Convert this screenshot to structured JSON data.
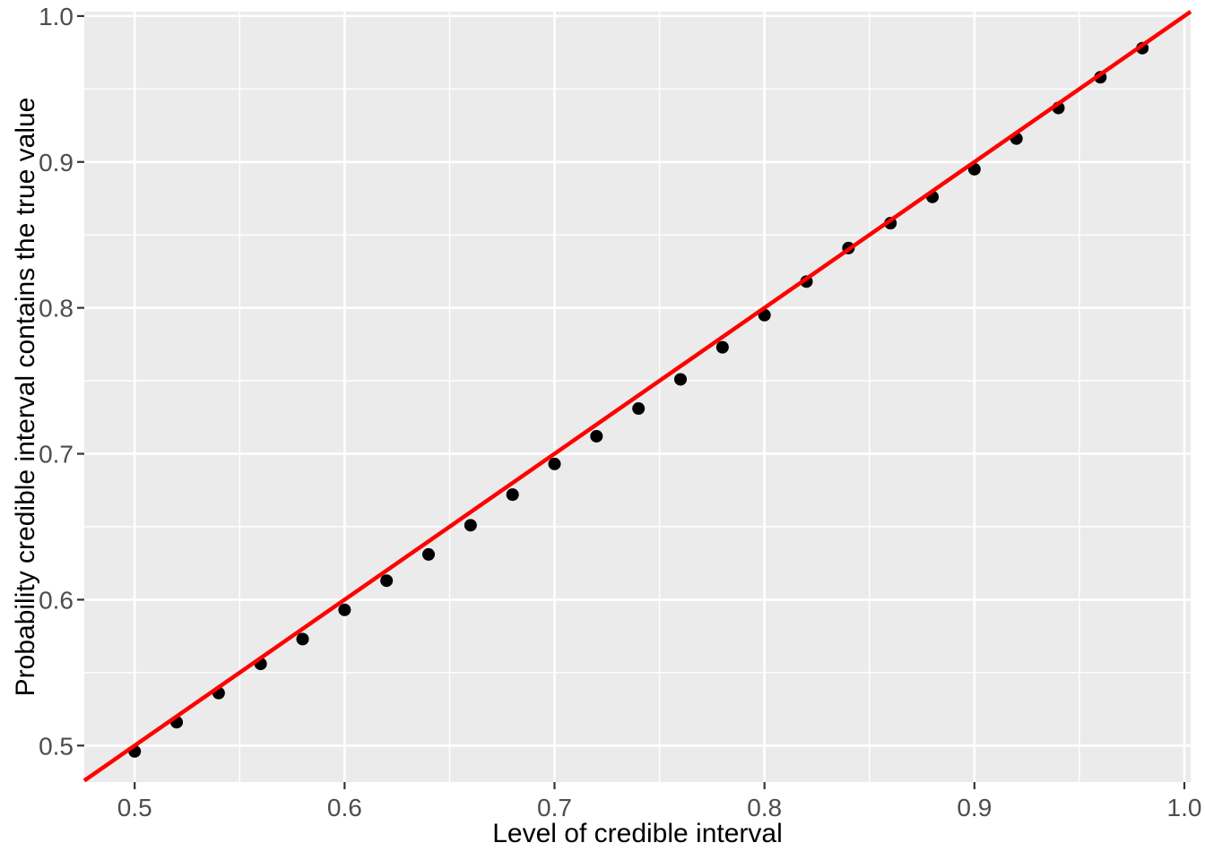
{
  "chart_data": {
    "type": "scatter",
    "title": "",
    "xlabel": "Level of credible interval",
    "ylabel": "Probability credible interval contains the true value",
    "xlim": [
      0.476,
      1.003
    ],
    "ylim": [
      0.475,
      1.003
    ],
    "x_major_ticks": [
      0.5,
      0.6,
      0.7,
      0.8,
      0.9,
      1.0
    ],
    "y_major_ticks": [
      0.5,
      0.6,
      0.7,
      0.8,
      0.9,
      1.0
    ],
    "x_tick_labels": [
      "0.5",
      "0.6",
      "0.7",
      "0.8",
      "0.9",
      "1.0"
    ],
    "y_tick_labels": [
      "0.5",
      "0.6",
      "0.7",
      "0.8",
      "0.9",
      "1.0"
    ],
    "x_minor_ticks": [
      0.55,
      0.65,
      0.75,
      0.85,
      0.95
    ],
    "y_minor_ticks": [
      0.55,
      0.65,
      0.75,
      0.85,
      0.95
    ],
    "grid": true,
    "legend": false,
    "points": {
      "x": [
        0.5,
        0.52,
        0.54,
        0.56,
        0.58,
        0.6,
        0.62,
        0.64,
        0.66,
        0.68,
        0.7,
        0.72,
        0.74,
        0.76,
        0.78,
        0.8,
        0.82,
        0.84,
        0.86,
        0.88,
        0.9,
        0.92,
        0.94,
        0.96,
        0.98
      ],
      "y": [
        0.496,
        0.516,
        0.536,
        0.556,
        0.573,
        0.593,
        0.613,
        0.631,
        0.651,
        0.672,
        0.693,
        0.712,
        0.731,
        0.751,
        0.773,
        0.795,
        0.818,
        0.841,
        0.858,
        0.876,
        0.895,
        0.916,
        0.937,
        0.958,
        0.978
      ]
    },
    "reference_line": {
      "type": "identity",
      "slope": 1,
      "intercept": 0
    },
    "colors": {
      "point": "#000000",
      "reference_line": "#FF0000",
      "panel_background": "#EBEBEB",
      "grid_major": "#FFFFFF",
      "grid_minor": "#FFFFFF",
      "tick_mark": "#333333",
      "tick_label": "#4D4D4D",
      "axis_title": "#000000",
      "figure_background": "#FFFFFF"
    }
  }
}
